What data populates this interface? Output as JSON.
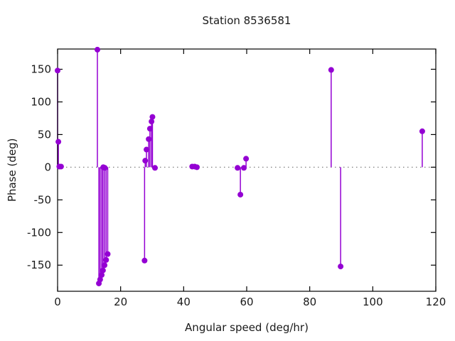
{
  "chart_data": {
    "type": "stem",
    "title": "Station 8536581",
    "xlabel": "Angular speed (deg/hr)",
    "ylabel": "Phase (deg)",
    "xlim": [
      0,
      120
    ],
    "ylim": [
      -190,
      181
    ],
    "x_ticks": [
      0,
      20,
      40,
      60,
      80,
      100,
      120
    ],
    "y_ticks": [
      -150,
      -100,
      -50,
      0,
      50,
      100,
      150
    ],
    "legend": "none",
    "grid": "off",
    "zero_line": "dotted",
    "marker_color": "#9400d3",
    "axis_color": "#000000",
    "zero_line_color": "#808080",
    "text_color": "#1a1a1a",
    "points": [
      {
        "x": 0.0,
        "y": 148
      },
      {
        "x": 0.25,
        "y": 39
      },
      {
        "x": 0.55,
        "y": 1
      },
      {
        "x": 1.1,
        "y": 1
      },
      {
        "x": 12.63,
        "y": 180
      },
      {
        "x": 13.1,
        "y": -178
      },
      {
        "x": 13.5,
        "y": -172
      },
      {
        "x": 14.0,
        "y": -165
      },
      {
        "x": 14.4,
        "y": -158
      },
      {
        "x": 14.9,
        "y": -150
      },
      {
        "x": 15.4,
        "y": -142
      },
      {
        "x": 15.9,
        "y": -133
      },
      {
        "x": 14.5,
        "y": 0
      },
      {
        "x": 15.0,
        "y": -1
      },
      {
        "x": 27.6,
        "y": -143
      },
      {
        "x": 27.8,
        "y": 10
      },
      {
        "x": 28.2,
        "y": 27
      },
      {
        "x": 28.9,
        "y": 43
      },
      {
        "x": 29.3,
        "y": 59
      },
      {
        "x": 29.8,
        "y": 70
      },
      {
        "x": 30.1,
        "y": 77
      },
      {
        "x": 30.9,
        "y": -1
      },
      {
        "x": 42.7,
        "y": 1
      },
      {
        "x": 43.5,
        "y": 1
      },
      {
        "x": 44.2,
        "y": 0
      },
      {
        "x": 57.1,
        "y": -1
      },
      {
        "x": 58.0,
        "y": -42
      },
      {
        "x": 59.1,
        "y": -1
      },
      {
        "x": 59.8,
        "y": 13
      },
      {
        "x": 86.8,
        "y": 149
      },
      {
        "x": 89.8,
        "y": -152
      },
      {
        "x": 115.7,
        "y": 55
      }
    ]
  }
}
